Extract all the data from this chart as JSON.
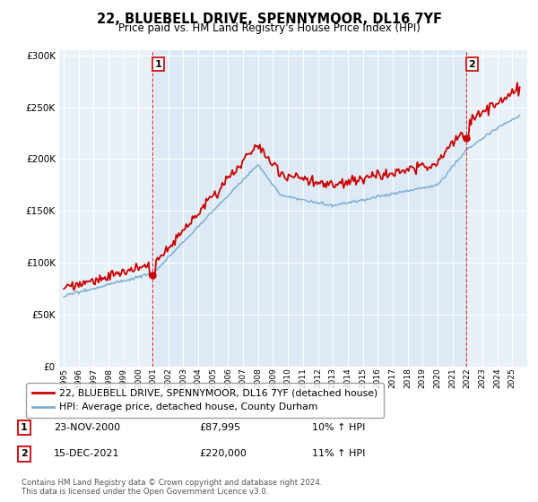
{
  "title": "22, BLUEBELL DRIVE, SPENNYMOOR, DL16 7YF",
  "subtitle": "Price paid vs. HM Land Registry's House Price Index (HPI)",
  "legend_label_red": "22, BLUEBELL DRIVE, SPENNYMOOR, DL16 7YF (detached house)",
  "legend_label_blue": "HPI: Average price, detached house, County Durham",
  "sale1_date": "23-NOV-2000",
  "sale1_price": "£87,995",
  "sale1_hpi": "10% ↑ HPI",
  "sale2_date": "15-DEC-2021",
  "sale2_price": "£220,000",
  "sale2_hpi": "11% ↑ HPI",
  "footer": "Contains HM Land Registry data © Crown copyright and database right 2024.\nThis data is licensed under the Open Government Licence v3.0.",
  "red_color": "#cc0000",
  "blue_color": "#7bafd4",
  "bg_color": "#dce8f5",
  "plot_bg": "#e8f0f8"
}
